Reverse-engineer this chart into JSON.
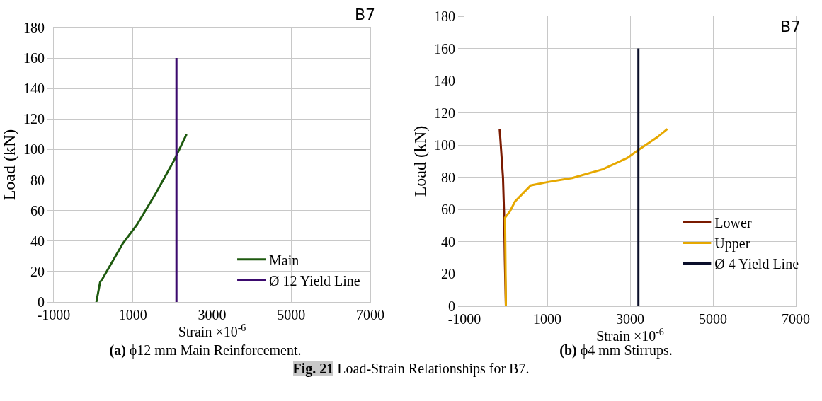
{
  "chart_data": [
    {
      "type": "line",
      "xlabel": "Strain ×10$^{-6}$",
      "ylabel": "Load (kN)",
      "xlim": [
        -1000,
        7000
      ],
      "xticks": [
        -1000,
        1000,
        3000,
        5000,
        7000
      ],
      "ylim": [
        0,
        180
      ],
      "yticks": [
        0,
        20,
        40,
        60,
        80,
        100,
        120,
        140,
        160,
        180
      ],
      "grid": true,
      "legend": "bottom right",
      "marker": "none",
      "line_style": "solid",
      "annotations": [
        "B7",
        "(a) ϕ12 mm Main Reinforcement."
      ],
      "series": [
        {
          "name": "Main",
          "color": "#1e5a0f",
          "x": [
            75,
            170,
            235,
            750,
            1100,
            1550,
            2035,
            2356
          ],
          "values": [
            0,
            13,
            15.4,
            38.6,
            50.6,
            70,
            92.6,
            110
          ]
        },
        {
          "name": "Ø 12 Yield Line",
          "color": "#3b0a6e",
          "x": [
            2100,
            2100
          ],
          "values": [
            0,
            160
          ]
        }
      ]
    },
    {
      "type": "line",
      "xlabel": "Strain ×10$^{-6}$",
      "ylabel": "Load (kN)",
      "xlim": [
        -1000,
        7000
      ],
      "xticks": [
        -1000,
        1000,
        3000,
        5000,
        7000
      ],
      "ylim": [
        0,
        180
      ],
      "yticks": [
        0,
        20,
        40,
        60,
        80,
        100,
        120,
        140,
        160,
        180
      ],
      "grid": true,
      "legend": "right",
      "marker": "none",
      "line_style": "solid",
      "annotations": [
        "B7",
        "(b) ϕ4 mm Stirrups.",
        "Fig. 21 Load-Strain Relationships for B7."
      ],
      "series": [
        {
          "name": "Lower",
          "color": "#7a1a00",
          "x": [
            -150,
            -70,
            -40,
            -25,
            0
          ],
          "values": [
            110,
            80,
            54.6,
            29,
            0
          ]
        },
        {
          "name": "Upper",
          "color": "#e6a800",
          "x": [
            0,
            -10,
            -20,
            100,
            220,
            600,
            990,
            1600,
            2340,
            2930,
            3200,
            3660,
            3900
          ],
          "values": [
            0,
            29,
            55,
            59,
            65,
            75,
            77,
            79.6,
            85,
            92,
            97,
            105,
            110
          ]
        },
        {
          "name": "Ø 4 Yield Line",
          "color": "#0a0f2a",
          "x": [
            3200,
            3200
          ],
          "values": [
            0,
            160
          ]
        }
      ]
    }
  ]
}
